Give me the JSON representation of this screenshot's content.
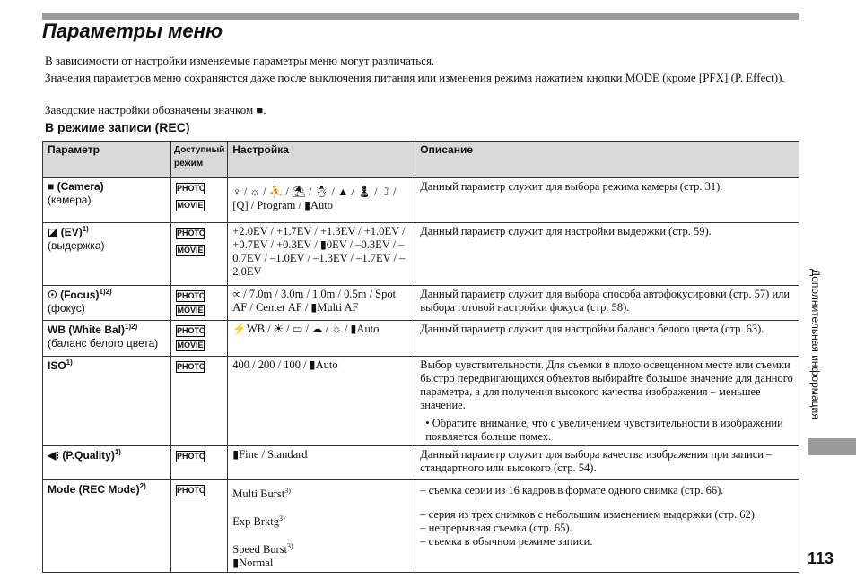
{
  "title": "Параметры меню",
  "paragraphs": [
    "В зависимости от настройки изменяемые параметры меню могут различаться.",
    "Значения параметров меню сохраняются даже после выключения питания или изменения режима нажатием кнопки MODE (кроме [PFX] (P. Effect)).",
    "Заводские настройки обозначены значком ■."
  ],
  "section": "В режиме записи (REC)",
  "headers": {
    "param": "Параметр",
    "mode": "Доступный режим",
    "setting": "Настройка",
    "desc": "Описание"
  },
  "badges": {
    "photo": "PHOTO",
    "movie": "MOVIE"
  },
  "rows": [
    {
      "icon": "camera-icon",
      "name": "(Camera)",
      "sup": "",
      "ru": "(камера)",
      "setting": "♀ / ☼ / ⛹ / ⛱ / ☃ / ▲ / ♟ / ☽ / [Q] / Program / ▮Auto",
      "desc": "Данный параметр служит для выбора режима камеры (стр. 31)."
    },
    {
      "icon": "ev-icon",
      "name": "(EV)",
      "sup": "1)",
      "ru": "(выдержка)",
      "setting": "+2.0EV / +1.7EV / +1.3EV / +1.0EV / +0.7EV / +0.3EV / ▮0EV / –0.3EV / –0.7EV / –1.0EV / –1.3EV / –1.7EV / –2.0EV",
      "desc": "Данный параметр служит для  настройки выдержки (стр. 59)."
    },
    {
      "icon": "focus-icon",
      "name": "(Focus)",
      "sup": "1)2)",
      "ru": "(фокус)",
      "setting": "∞ / 7.0m / 3.0m / 1.0m / 0.5m / Spot AF / Center AF / ▮Multi AF",
      "desc": "Данный параметр служит для  выбора способа автофокусировки (стр. 57) или выбора готовой настройки фокуса (стр. 58)."
    },
    {
      "icon": "",
      "name": "WB (White Bal)",
      "sup": "1)2)",
      "ru": "(баланс белого цвета)",
      "setting": "⚡WB / ☀ / ▭ / ☁ / ☼ / ▮Auto",
      "desc": "Данный параметр служит для настройки баланса белого цвета (стр. 63)."
    },
    {
      "icon": "",
      "name": "ISO",
      "sup": "1)",
      "ru": "",
      "setting": "400 / 200 / 100 / ▮Auto",
      "desc": "Выбор чувствительности. Для съемки в плохо освещенном месте или съемки быстро передвигающихся объектов выбирайте большое значение для данного параметра, а для получения высокого качества изображения – меньшее значение.",
      "note": "• Обратите внимание, что с увеличением чувствительности в изображении появляется больше помех."
    },
    {
      "icon": "quality-icon",
      "name": "(P.Quality)",
      "sup": "1)",
      "ru": "",
      "setting": "▮Fine / Standard",
      "desc": "Данный параметр служит для выбора качества изображения при записи – стандартного или высокого (стр. 54)."
    },
    {
      "icon": "",
      "name": "Mode (REC Mode)",
      "sup": "2)",
      "ru": "",
      "settings": [
        "Multi Burst",
        "Exp Brktg",
        "Speed Burst",
        "▮Normal"
      ],
      "descs": [
        "– съемка серии из 16 кадров в формате одного снимка (стр. 66).",
        "– серия из трех снимков с небольшим изменением выдержки (стр. 62).",
        "– непрерывная съемка (стр. 65).",
        "– съемка в обычном режиме записи."
      ],
      "sup3": "3)"
    }
  ],
  "side_label": "Дополнительная информация",
  "page_number": "113"
}
